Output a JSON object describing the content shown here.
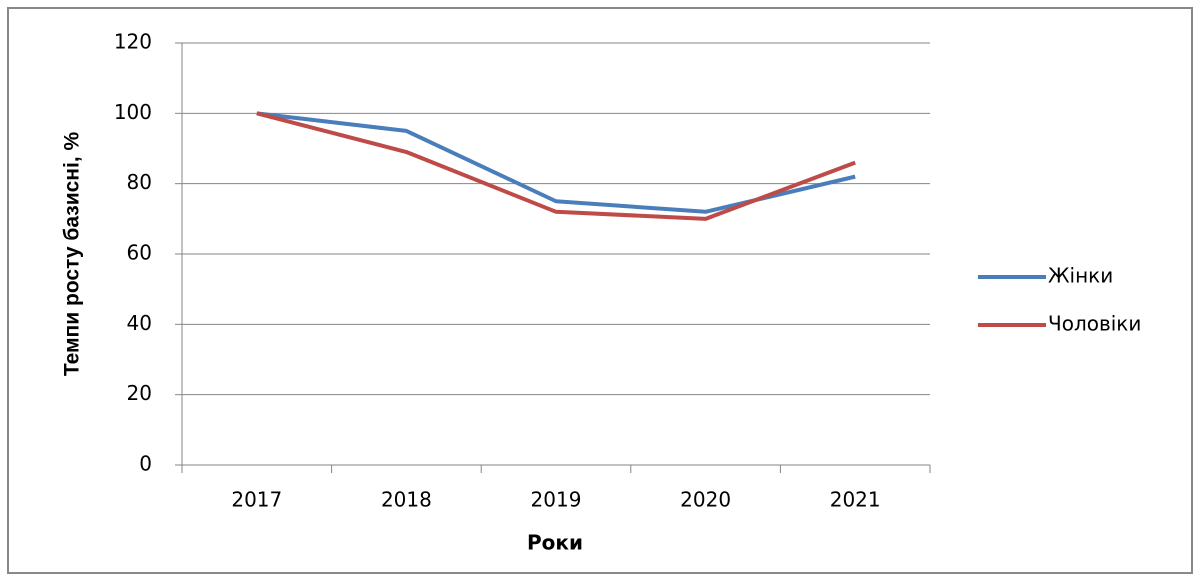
{
  "chart_data": {
    "type": "line",
    "categories": [
      "2017",
      "2018",
      "2019",
      "2020",
      "2021"
    ],
    "series": [
      {
        "name": "Жінки",
        "color": "#4a7ebb",
        "values": [
          100,
          95,
          75,
          72,
          82
        ]
      },
      {
        "name": "Чоловіки",
        "color": "#be4b48",
        "values": [
          100,
          89,
          72,
          70,
          86
        ]
      }
    ],
    "xlabel": "Роки",
    "ylabel": "Темпи росту базисні, %",
    "ylim": [
      0,
      120
    ],
    "yticks": [
      0,
      20,
      40,
      60,
      80,
      100,
      120
    ],
    "grid": true,
    "legend": "right"
  }
}
